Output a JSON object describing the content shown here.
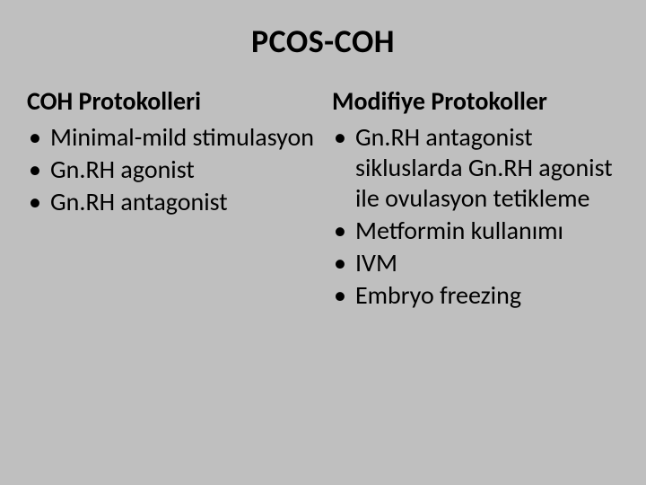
{
  "title": "PCOS-COH",
  "background_color": "#bfbfbf",
  "text_color": "#000000",
  "title_fontsize": 36,
  "heading_fontsize": 28,
  "body_fontsize": 28,
  "left": {
    "heading": "COH Protokolleri",
    "items": [
      "Minimal-mild stimulasyon",
      "Gn.RH agonist",
      "Gn.RH antagonist"
    ]
  },
  "right": {
    "heading": "Modifiye Protokoller",
    "items": [
      "Gn.RH antagonist sikluslarda Gn.RH agonist ile ovulasyon tetikleme",
      "Metformin kullanımı",
      "IVM",
      "Embryo freezing"
    ]
  }
}
